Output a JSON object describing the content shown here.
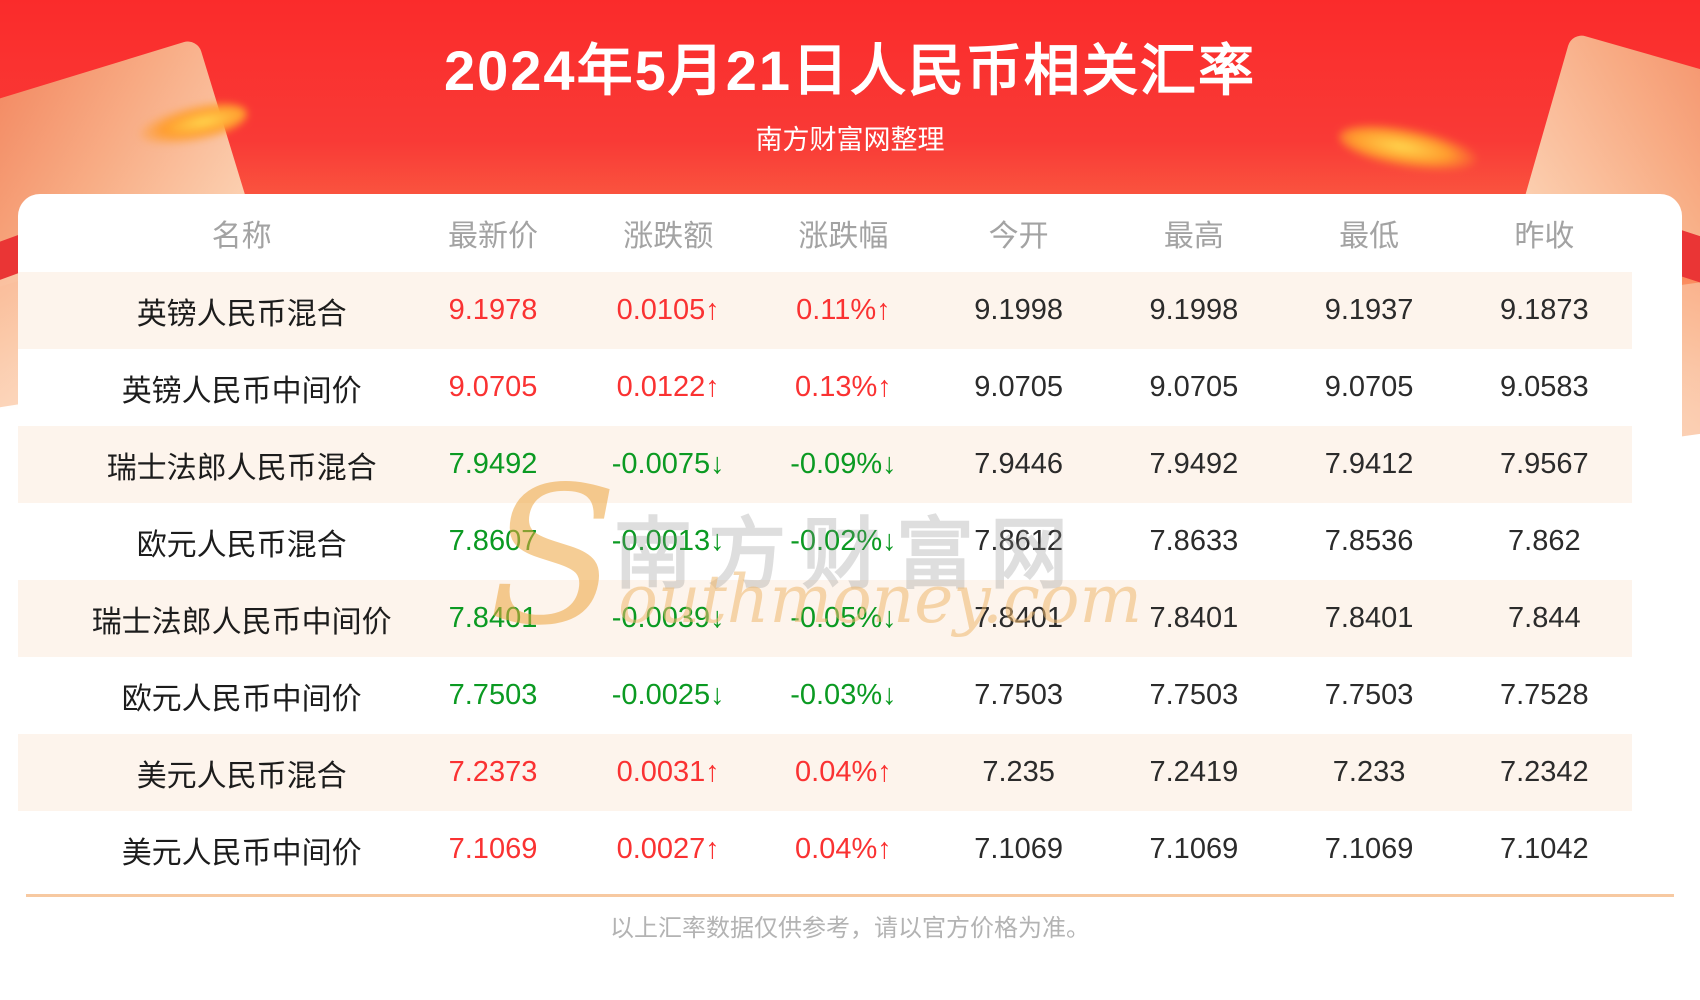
{
  "header": {
    "title": "2024年5月21日人民币相关汇率",
    "subtitle": "南方财富网整理"
  },
  "table": {
    "columns": [
      "名称",
      "最新价",
      "涨跌额",
      "涨跌幅",
      "今开",
      "最高",
      "最低",
      "昨收"
    ],
    "rows": [
      {
        "name": "英镑人民币混合",
        "latest": "9.1978",
        "change": "0.0105↑",
        "change_pct": "0.11%↑",
        "open": "9.1998",
        "high": "9.1998",
        "low": "9.1937",
        "prev_close": "9.1873",
        "trend": "up"
      },
      {
        "name": "英镑人民币中间价",
        "latest": "9.0705",
        "change": "0.0122↑",
        "change_pct": "0.13%↑",
        "open": "9.0705",
        "high": "9.0705",
        "low": "9.0705",
        "prev_close": "9.0583",
        "trend": "up"
      },
      {
        "name": "瑞士法郎人民币混合",
        "latest": "7.9492",
        "change": "-0.0075↓",
        "change_pct": "-0.09%↓",
        "open": "7.9446",
        "high": "7.9492",
        "low": "7.9412",
        "prev_close": "7.9567",
        "trend": "down"
      },
      {
        "name": "欧元人民币混合",
        "latest": "7.8607",
        "change": "-0.0013↓",
        "change_pct": "-0.02%↓",
        "open": "7.8612",
        "high": "7.8633",
        "low": "7.8536",
        "prev_close": "7.862",
        "trend": "down"
      },
      {
        "name": "瑞士法郎人民币中间价",
        "latest": "7.8401",
        "change": "-0.0039↓",
        "change_pct": "-0.05%↓",
        "open": "7.8401",
        "high": "7.8401",
        "low": "7.8401",
        "prev_close": "7.844",
        "trend": "down"
      },
      {
        "name": "欧元人民币中间价",
        "latest": "7.7503",
        "change": "-0.0025↓",
        "change_pct": "-0.03%↓",
        "open": "7.7503",
        "high": "7.7503",
        "low": "7.7503",
        "prev_close": "7.7528",
        "trend": "down"
      },
      {
        "name": "美元人民币混合",
        "latest": "7.2373",
        "change": "0.0031↑",
        "change_pct": "0.04%↑",
        "open": "7.235",
        "high": "7.2419",
        "low": "7.233",
        "prev_close": "7.2342",
        "trend": "up"
      },
      {
        "name": "美元人民币中间价",
        "latest": "7.1069",
        "change": "0.0027↑",
        "change_pct": "0.04%↑",
        "open": "7.1069",
        "high": "7.1069",
        "low": "7.1069",
        "prev_close": "7.1042",
        "trend": "up"
      }
    ]
  },
  "watermark": {
    "cn": "南方财富网",
    "en_initial": "S",
    "en_rest": "outhmoney.com"
  },
  "footer": {
    "note": "以上汇率数据仅供参考，请以官方价格为准。"
  },
  "colors": {
    "up_red": "#fa3232",
    "down_green": "#0b9a22",
    "hero_red": "#fa2b2b",
    "divider_tan": "#f7c9a1",
    "row_cream": "#fdf4ec"
  }
}
